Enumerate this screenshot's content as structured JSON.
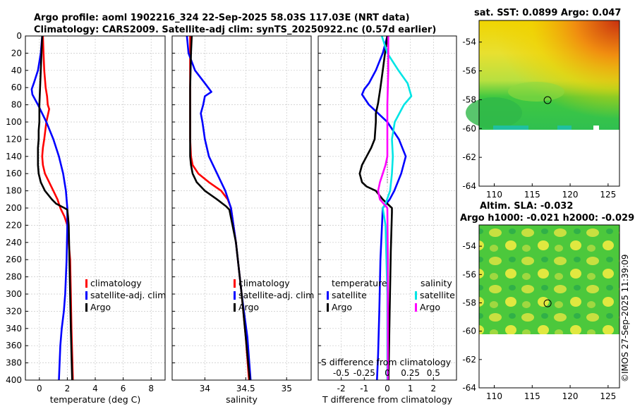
{
  "header": {
    "title_line1": "Argo profile: aoml 1902216_324 22-Sep-2025 58.03S 117.03E (NRT data)",
    "title_line2": "Climatology: CARS2009. Satellite-adj clim: synTS_20250922.nc (0.57d earlier)"
  },
  "colors": {
    "climatology": "#ff0000",
    "satellite": "#0000ff",
    "argo": "#000000",
    "salinity_satellite": "#00e5e5",
    "salinity_argo": "#ff00ff"
  },
  "depth_ticks": [
    "0",
    "20",
    "40",
    "60",
    "80",
    "100",
    "120",
    "140",
    "160",
    "180",
    "200",
    "220",
    "240",
    "260",
    "280",
    "300",
    "320",
    "340",
    "360",
    "380",
    "400"
  ],
  "chart_data": [
    {
      "type": "line",
      "id": "temperature",
      "xlabel": "temperature (deg C)",
      "xlim": [
        -1,
        9
      ],
      "ylim": [
        400,
        0
      ],
      "xticks": [
        "0",
        "2",
        "4",
        "6",
        "8"
      ],
      "legend": [
        "climatology",
        "satellite-adj. clim",
        "Argo"
      ],
      "series": [
        {
          "name": "climatology",
          "x": [
            0.25,
            0.3,
            0.35,
            0.45,
            0.55,
            0.6,
            0.7,
            0.5,
            0.35,
            0.25,
            0.2,
            0.25,
            0.4,
            0.7,
            1.0,
            1.3,
            1.5,
            1.8,
            2.0,
            2.1,
            2.2,
            2.25,
            2.3,
            2.35,
            2.4
          ],
          "y": [
            0,
            20,
            40,
            60,
            70,
            80,
            85,
            100,
            120,
            130,
            140,
            150,
            160,
            170,
            180,
            190,
            200,
            210,
            220,
            240,
            260,
            300,
            340,
            370,
            400
          ]
        },
        {
          "name": "satellite-adj. clim",
          "x": [
            0.2,
            0.1,
            -0.1,
            -0.4,
            -0.55,
            -0.5,
            -0.1,
            0.5,
            1.0,
            1.4,
            1.7,
            1.9,
            2.0,
            2.0,
            1.95,
            1.85,
            1.75,
            1.6,
            1.5,
            1.45,
            1.4
          ],
          "y": [
            0,
            20,
            40,
            55,
            62,
            68,
            80,
            100,
            120,
            140,
            160,
            180,
            200,
            220,
            260,
            300,
            320,
            340,
            360,
            380,
            400
          ]
        },
        {
          "name": "Argo",
          "x": [
            0.2,
            0.15,
            0.1,
            0.05,
            0.0,
            0.0,
            -0.05,
            -0.05,
            -0.1,
            -0.1,
            -0.1,
            -0.05,
            0.1,
            0.4,
            0.9,
            1.2,
            1.8,
            2.0,
            2.05,
            2.1,
            2.15,
            2.2,
            2.25,
            2.3,
            2.35
          ],
          "y": [
            0,
            20,
            40,
            60,
            80,
            100,
            110,
            120,
            130,
            140,
            150,
            160,
            170,
            180,
            190,
            195,
            200,
            202,
            210,
            220,
            260,
            300,
            340,
            370,
            400
          ]
        }
      ]
    },
    {
      "type": "line",
      "id": "salinity",
      "xlabel": "salinity",
      "xlim": [
        33.6,
        35.3
      ],
      "ylim": [
        400,
        0
      ],
      "xticks": [
        "34",
        "34.5",
        "35"
      ],
      "legend": [
        "climatology",
        "satellite-adj. clim",
        "Argo"
      ],
      "series": [
        {
          "name": "climatology",
          "x": [
            33.82,
            33.82,
            33.82,
            33.82,
            33.82,
            33.82,
            33.83,
            33.85,
            33.92,
            34.05,
            34.2,
            34.28,
            34.32,
            34.38,
            34.45,
            34.5,
            34.54
          ],
          "y": [
            0,
            20,
            60,
            80,
            100,
            120,
            140,
            150,
            160,
            170,
            180,
            190,
            200,
            240,
            300,
            350,
            400
          ]
        },
        {
          "name": "satellite-adj. clim",
          "x": [
            33.78,
            33.8,
            33.88,
            34.0,
            34.08,
            34.0,
            33.98,
            33.95,
            33.97,
            34.0,
            34.05,
            34.15,
            34.25,
            34.32,
            34.38,
            34.45,
            34.52,
            34.56
          ],
          "y": [
            0,
            20,
            40,
            55,
            65,
            70,
            80,
            90,
            100,
            120,
            140,
            160,
            180,
            200,
            240,
            300,
            350,
            400
          ]
        },
        {
          "name": "Argo",
          "x": [
            33.84,
            33.83,
            33.82,
            33.82,
            33.82,
            33.82,
            33.83,
            33.85,
            33.9,
            34.0,
            34.15,
            34.26,
            34.3,
            34.38,
            34.45,
            34.5,
            34.55
          ],
          "y": [
            0,
            20,
            60,
            100,
            120,
            140,
            150,
            160,
            170,
            180,
            190,
            198,
            202,
            240,
            300,
            350,
            400
          ]
        }
      ]
    },
    {
      "type": "line",
      "id": "difference",
      "xlabel": "T difference from climatology",
      "xlabel_top": "S difference from climatology",
      "xlim": [
        -3,
        3
      ],
      "ylim": [
        400,
        0
      ],
      "xticks": [
        "-2",
        "-1",
        "0",
        "1",
        "2"
      ],
      "xticks_s": [
        "-0.5",
        "-0.25",
        "0",
        "0.25",
        "0.5"
      ],
      "s_scale": 4,
      "legend_temperature_title": "temperature",
      "legend_salinity_title": "salinity",
      "legend_temperature": [
        "satellite",
        "Argo"
      ],
      "legend_salinity": [
        "satellite",
        "Argo"
      ],
      "series": [
        {
          "name": "T satellite",
          "x": [
            0.0,
            -0.2,
            -0.5,
            -0.8,
            -1.0,
            -1.1,
            -0.8,
            0.0,
            0.5,
            0.8,
            0.6,
            0.3,
            0.1,
            -0.2,
            -0.3,
            -0.35,
            -0.4,
            -0.45
          ],
          "y": [
            0,
            20,
            40,
            55,
            62,
            68,
            80,
            100,
            120,
            140,
            160,
            180,
            190,
            200,
            260,
            320,
            370,
            400
          ]
        },
        {
          "name": "T Argo",
          "x": [
            0.0,
            -0.1,
            -0.2,
            -0.3,
            -0.4,
            -0.5,
            -0.5,
            -0.55,
            -0.7,
            -0.9,
            -1.1,
            -1.2,
            -1.1,
            -0.9,
            -0.5,
            -0.2,
            0.2,
            0.2,
            0.15,
            0.1,
            0.05
          ],
          "y": [
            0,
            20,
            40,
            60,
            78,
            90,
            100,
            120,
            130,
            140,
            150,
            160,
            170,
            175,
            180,
            190,
            200,
            205,
            250,
            320,
            400
          ]
        },
        {
          "name": "S satellite",
          "x": [
            -0.06,
            0.0,
            0.12,
            0.22,
            0.26,
            0.18,
            0.08,
            0.05,
            0.06,
            0.05,
            0.03,
            -0.02,
            -0.05,
            -0.02,
            0.0,
            0.0
          ],
          "y": [
            0,
            20,
            40,
            55,
            70,
            80,
            100,
            120,
            140,
            160,
            180,
            195,
            200,
            220,
            300,
            400
          ]
        },
        {
          "name": "S Argo",
          "x": [
            0.01,
            0.01,
            0.0,
            0.0,
            0.0,
            0.0,
            -0.02,
            -0.05,
            -0.08,
            -0.1,
            -0.08,
            -0.04,
            0.0,
            0.005,
            0.005
          ],
          "y": [
            0,
            40,
            80,
            100,
            120,
            140,
            150,
            160,
            170,
            180,
            190,
            195,
            200,
            260,
            400
          ]
        }
      ]
    },
    {
      "type": "heatmap",
      "id": "sst_map",
      "title": "sat. SST: 0.0899 Argo: 0.047",
      "xlim": [
        108,
        126.5
      ],
      "ylim": [
        -64,
        -52.5
      ],
      "xticks": [
        "110",
        "115",
        "120",
        "125"
      ],
      "yticks": [
        "-54",
        "-56",
        "-58",
        "-60",
        "-62",
        "-64"
      ],
      "argo_position": {
        "lon": 117.03,
        "lat": -58.03
      }
    },
    {
      "type": "heatmap",
      "id": "sla_map",
      "title_line1": "Altim. SLA: -0.032",
      "title_line2": "Argo h1000: -0.021 h2000: -0.029",
      "xlim": [
        108,
        126.5
      ],
      "ylim": [
        -64,
        -52.5
      ],
      "xticks": [
        "110",
        "115",
        "120",
        "125"
      ],
      "yticks": [
        "-54",
        "-56",
        "-58",
        "-60",
        "-62",
        "-64"
      ],
      "argo_position": {
        "lon": 117.03,
        "lat": -58.03
      }
    }
  ],
  "credit": "©IMOS 27-Sep-2025 11:39:09"
}
